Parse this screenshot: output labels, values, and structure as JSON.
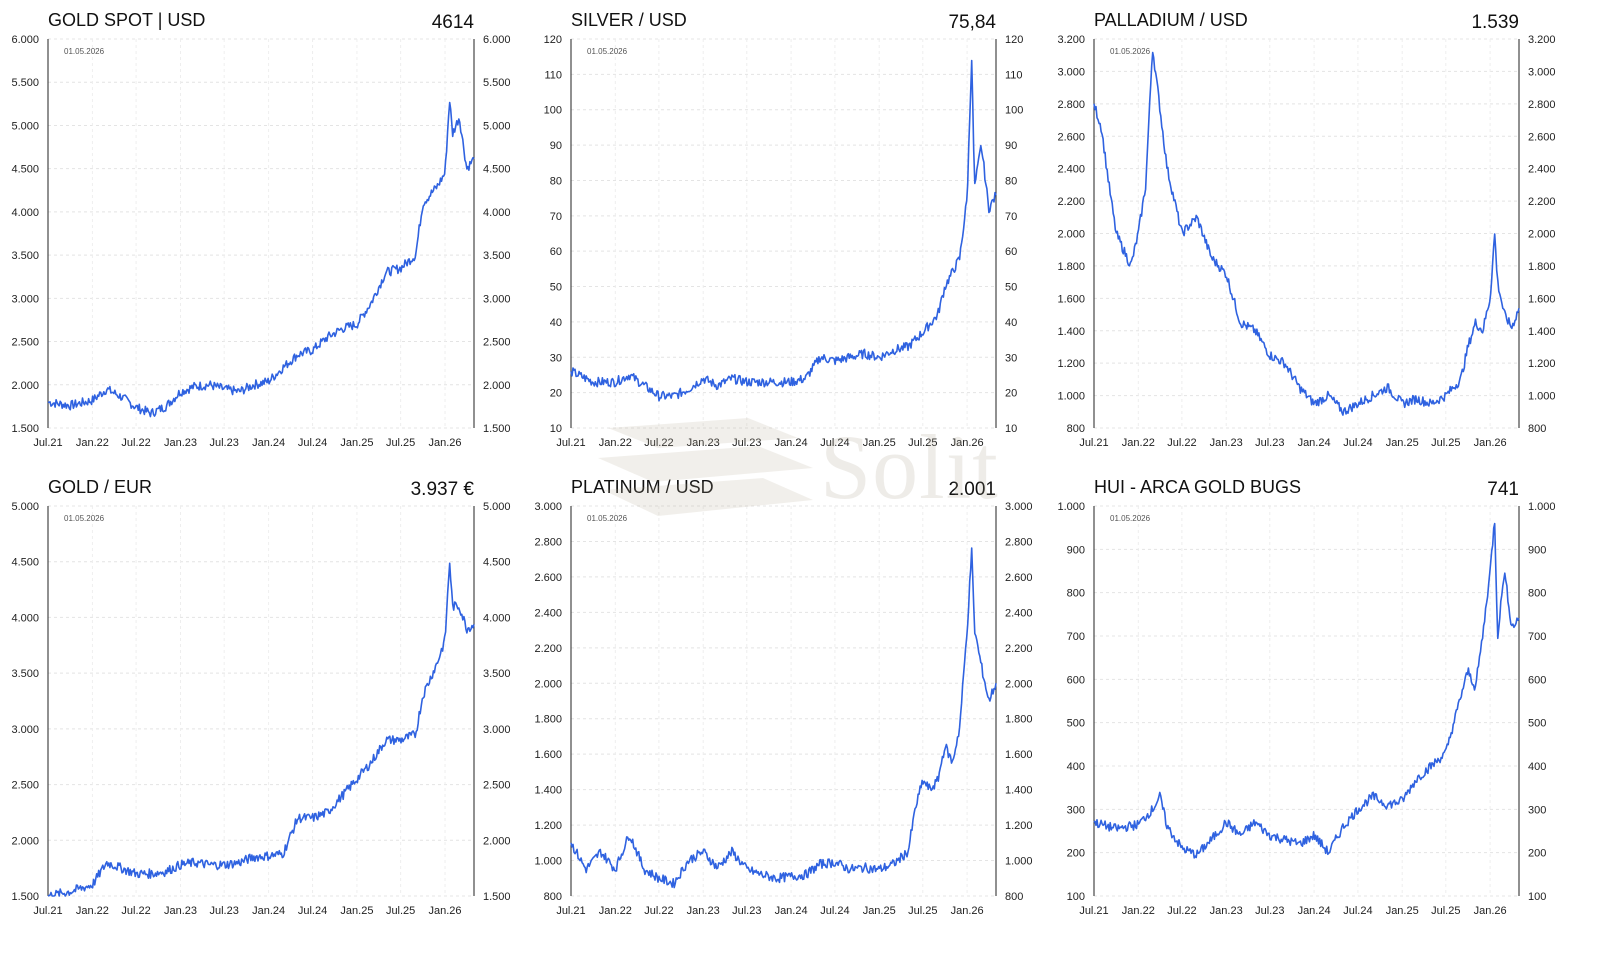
{
  "watermark": {
    "text": "Solit"
  },
  "line_color": "#2f62e0",
  "date_stamp": "01.05.2026",
  "x_ticks": [
    "Jul.21",
    "Jan.22",
    "Jul.22",
    "Jan.23",
    "Jul.23",
    "Jan.24",
    "Jul.24",
    "Jan.25",
    "Jul.25",
    "Jan.26"
  ],
  "chart_data": [
    {
      "type": "line",
      "title": "GOLD SPOT | USD",
      "value_label": "4614",
      "ylim": [
        1500,
        6000
      ],
      "y_ticks": [
        "1.500",
        "2.000",
        "2.500",
        "3.000",
        "3.500",
        "4.000",
        "4.500",
        "5.000",
        "5.500",
        "6.000"
      ],
      "x": [
        "2021-07",
        "2021-10",
        "2022-01",
        "2022-03",
        "2022-05",
        "2022-07",
        "2022-09",
        "2022-11",
        "2023-01",
        "2023-03",
        "2023-05",
        "2023-07",
        "2023-09",
        "2023-11",
        "2024-01",
        "2024-03",
        "2024-05",
        "2024-07",
        "2024-09",
        "2024-11",
        "2025-01",
        "2025-03",
        "2025-05",
        "2025-07",
        "2025-09",
        "2025-10",
        "2025-12",
        "2026-01",
        "2026-01-20",
        "2026-02",
        "2026-03",
        "2026-04",
        "2026-05"
      ],
      "values": [
        1800,
        1760,
        1820,
        1950,
        1860,
        1740,
        1670,
        1750,
        1920,
        1980,
        2000,
        1950,
        1920,
        2000,
        2040,
        2200,
        2350,
        2400,
        2550,
        2650,
        2700,
        2950,
        3300,
        3350,
        3500,
        4100,
        4300,
        4450,
        5300,
        4900,
        5100,
        4500,
        4614
      ]
    },
    {
      "type": "line",
      "title": "SILVER / USD",
      "value_label": "75,84",
      "ylim": [
        10,
        120
      ],
      "y_ticks": [
        "10",
        "20",
        "30",
        "40",
        "50",
        "60",
        "70",
        "80",
        "90",
        "100",
        "110",
        "120"
      ],
      "x": [
        "2021-07",
        "2021-10",
        "2022-01",
        "2022-03",
        "2022-05",
        "2022-07",
        "2022-09",
        "2022-11",
        "2023-01",
        "2023-03",
        "2023-05",
        "2023-07",
        "2023-09",
        "2023-11",
        "2024-01",
        "2024-03",
        "2024-05",
        "2024-07",
        "2024-09",
        "2024-11",
        "2025-01",
        "2025-03",
        "2025-05",
        "2025-07",
        "2025-09",
        "2025-10",
        "2025-12",
        "2026-01",
        "2026-01-20",
        "2026-02",
        "2026-03",
        "2026-04",
        "2026-05"
      ],
      "values": [
        26,
        23,
        23,
        25,
        22,
        19,
        19,
        21,
        24,
        22,
        24,
        23,
        23,
        23,
        23,
        24,
        30,
        29,
        30,
        31,
        30,
        32,
        33,
        37,
        42,
        50,
        58,
        75,
        115,
        78,
        90,
        72,
        75.84
      ]
    },
    {
      "type": "line",
      "title": "PALLADIUM / USD",
      "value_label": "1.539",
      "ylim": [
        800,
        3200
      ],
      "y_ticks": [
        "800",
        "1.000",
        "1.200",
        "1.400",
        "1.600",
        "1.800",
        "2.000",
        "2.200",
        "2.400",
        "2.600",
        "2.800",
        "3.000",
        "3.200"
      ],
      "x": [
        "2021-07",
        "2021-08",
        "2021-09",
        "2021-10",
        "2021-12",
        "2022-01",
        "2022-02",
        "2022-03",
        "2022-05",
        "2022-07",
        "2022-09",
        "2022-11",
        "2023-01",
        "2023-03",
        "2023-05",
        "2023-07",
        "2023-09",
        "2023-11",
        "2024-01",
        "2024-03",
        "2024-05",
        "2024-07",
        "2024-09",
        "2024-11",
        "2025-01",
        "2025-03",
        "2025-05",
        "2025-07",
        "2025-09",
        "2025-10",
        "2025-11",
        "2025-12",
        "2026-01",
        "2026-01-20",
        "2026-02",
        "2026-03",
        "2026-04",
        "2026-05"
      ],
      "values": [
        2800,
        2650,
        2300,
        2000,
        1800,
        2000,
        2300,
        3150,
        2400,
        2000,
        2100,
        1850,
        1750,
        1450,
        1400,
        1250,
        1200,
        1050,
        950,
        1000,
        900,
        950,
        1000,
        1050,
        950,
        980,
        950,
        1000,
        1100,
        1300,
        1450,
        1400,
        1600,
        2000,
        1700,
        1500,
        1420,
        1539
      ]
    },
    {
      "type": "line",
      "title": "GOLD / EUR",
      "value_label": "3.937 €",
      "ylim": [
        1500,
        5000
      ],
      "y_ticks": [
        "1.500",
        "2.000",
        "2.500",
        "3.000",
        "3.500",
        "4.000",
        "4.500",
        "5.000"
      ],
      "x": [
        "2021-07",
        "2021-10",
        "2022-01",
        "2022-03",
        "2022-05",
        "2022-07",
        "2022-09",
        "2022-11",
        "2023-01",
        "2023-03",
        "2023-05",
        "2023-07",
        "2023-09",
        "2023-11",
        "2024-01",
        "2024-03",
        "2024-05",
        "2024-07",
        "2024-09",
        "2024-11",
        "2025-01",
        "2025-03",
        "2025-05",
        "2025-07",
        "2025-09",
        "2025-10",
        "2025-12",
        "2026-01",
        "2026-01-20",
        "2026-02",
        "2026-03",
        "2026-04",
        "2026-05"
      ],
      "values": [
        1500,
        1540,
        1600,
        1800,
        1750,
        1700,
        1700,
        1720,
        1780,
        1800,
        1780,
        1780,
        1800,
        1850,
        1860,
        1880,
        2200,
        2200,
        2250,
        2400,
        2550,
        2700,
        2900,
        2900,
        2950,
        3300,
        3600,
        3800,
        4500,
        4100,
        4100,
        3900,
        3937
      ]
    },
    {
      "type": "line",
      "title": "PLATINUM / USD",
      "value_label": "2.001",
      "ylim": [
        800,
        3000
      ],
      "y_ticks": [
        "800",
        "1.000",
        "1.200",
        "1.400",
        "1.600",
        "1.800",
        "2.000",
        "2.200",
        "2.400",
        "2.600",
        "2.800",
        "3.000"
      ],
      "x": [
        "2021-07",
        "2021-09",
        "2021-11",
        "2022-01",
        "2022-03",
        "2022-05",
        "2022-07",
        "2022-09",
        "2022-11",
        "2023-01",
        "2023-03",
        "2023-05",
        "2023-07",
        "2023-09",
        "2023-11",
        "2024-01",
        "2024-03",
        "2024-05",
        "2024-07",
        "2024-09",
        "2024-11",
        "2025-01",
        "2025-03",
        "2025-05",
        "2025-06",
        "2025-07",
        "2025-08",
        "2025-09",
        "2025-10",
        "2025-11",
        "2025-12",
        "2026-01",
        "2026-01-20",
        "2026-02",
        "2026-03",
        "2026-04",
        "2026-05"
      ],
      "values": [
        1100,
        950,
        1050,
        950,
        1150,
        950,
        900,
        870,
        1000,
        1050,
        960,
        1050,
        950,
        920,
        900,
        910,
        920,
        980,
        990,
        950,
        960,
        950,
        980,
        1050,
        1300,
        1450,
        1400,
        1450,
        1650,
        1550,
        1750,
        2300,
        2750,
        2300,
        2100,
        1900,
        2001
      ]
    },
    {
      "type": "line",
      "title": "HUI - ARCA GOLD BUGS",
      "value_label": "741",
      "ylim": [
        100,
        1000
      ],
      "y_ticks": [
        "100",
        "200",
        "300",
        "400",
        "500",
        "600",
        "700",
        "800",
        "900",
        "1.000"
      ],
      "x": [
        "2021-07",
        "2021-10",
        "2022-01",
        "2022-03",
        "2022-04",
        "2022-05",
        "2022-07",
        "2022-09",
        "2022-11",
        "2023-01",
        "2023-03",
        "2023-05",
        "2023-07",
        "2023-09",
        "2023-11",
        "2024-01",
        "2024-03",
        "2024-05",
        "2024-07",
        "2024-09",
        "2024-11",
        "2025-01",
        "2025-03",
        "2025-05",
        "2025-07",
        "2025-09",
        "2025-10",
        "2025-11",
        "2025-12",
        "2026-01",
        "2026-01-20",
        "2026-02",
        "2026-03",
        "2026-04",
        "2026-05"
      ],
      "values": [
        270,
        255,
        265,
        300,
        330,
        260,
        210,
        195,
        230,
        270,
        240,
        270,
        240,
        230,
        220,
        240,
        200,
        260,
        300,
        330,
        310,
        320,
        370,
        400,
        430,
        560,
        620,
        580,
        700,
        850,
        970,
        700,
        850,
        720,
        741
      ]
    }
  ]
}
